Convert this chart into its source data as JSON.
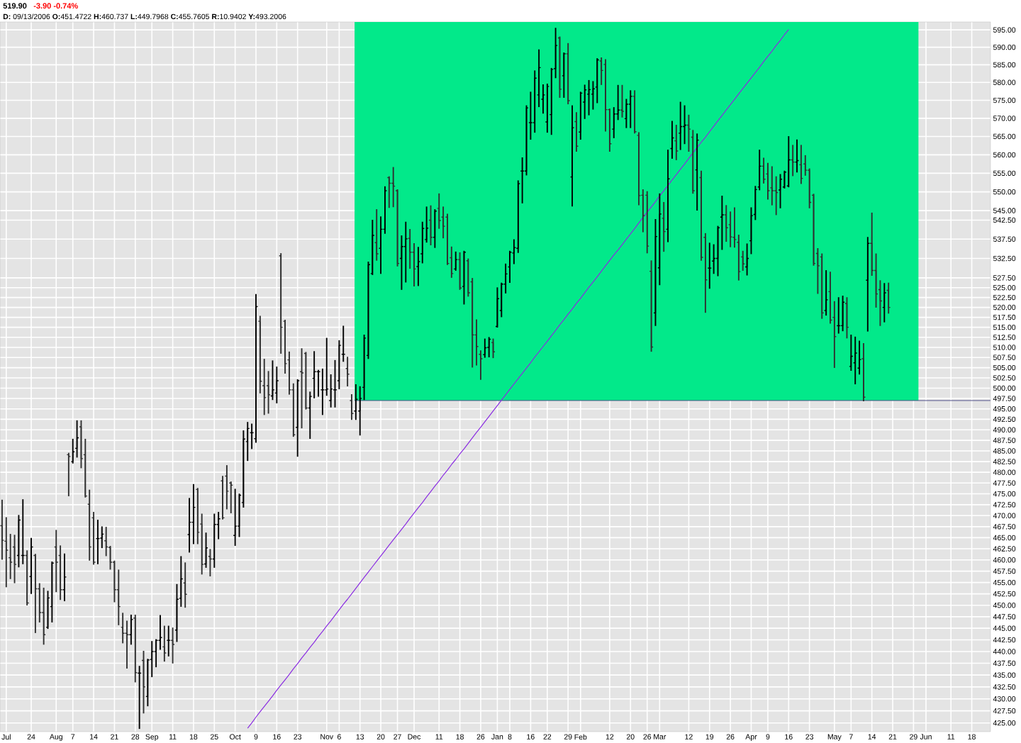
{
  "chart_data": {
    "type": "candlestick",
    "title": "519.90",
    "subtitle": "-3.90 -0.74%",
    "annotations": [
      "**D:** 09/13/2006 **O:**451.4722 **H:**460.737 **L:**449.7968 **C:**455.7605 **R:**10.9402 **Y:**493.2006"
    ],
    "categories": [
      null,
      "Jul",
      null,
      null,
      null,
      null,
      null,
      "24",
      null,
      null,
      null,
      null,
      null,
      "Aug",
      null,
      null,
      null,
      "7",
      null,
      null,
      null,
      null,
      "14",
      null,
      null,
      null,
      null,
      "21",
      null,
      null,
      null,
      null,
      "28",
      null,
      null,
      null,
      "Sep",
      null,
      null,
      null,
      null,
      "11",
      null,
      null,
      null,
      null,
      "18",
      null,
      null,
      null,
      null,
      "25",
      null,
      null,
      null,
      null,
      "Oct",
      null,
      null,
      null,
      null,
      "9",
      null,
      null,
      null,
      null,
      "16",
      null,
      null,
      null,
      null,
      "23",
      null,
      null,
      null,
      null,
      null,
      null,
      "Nov",
      null,
      null,
      "6",
      null,
      null,
      null,
      null,
      "13",
      null,
      null,
      null,
      null,
      "20",
      null,
      null,
      null,
      "27",
      null,
      null,
      null,
      "Dec",
      null,
      null,
      null,
      null,
      null,
      "11",
      null,
      null,
      null,
      null,
      "18",
      null,
      null,
      null,
      null,
      "26",
      null,
      null,
      null,
      "Jan",
      null,
      null,
      "8",
      null,
      null,
      null,
      null,
      "16",
      null,
      null,
      null,
      "22",
      null,
      null,
      null,
      null,
      "29",
      null,
      null,
      "Feb",
      null,
      null,
      null,
      null,
      null,
      null,
      "12",
      null,
      null,
      null,
      null,
      "20",
      null,
      null,
      null,
      "26",
      null,
      null,
      "Mar",
      null,
      null,
      null,
      null,
      null,
      null,
      "12",
      null,
      null,
      null,
      null,
      "19",
      null,
      null,
      null,
      null,
      "26",
      null,
      null,
      null,
      null,
      "Apr",
      null,
      null,
      null,
      "9",
      null,
      null,
      null,
      null,
      "16",
      null,
      null,
      null,
      null,
      "23",
      null,
      null,
      null,
      null,
      null,
      "May",
      null,
      null,
      null,
      "7",
      null,
      null,
      null,
      null,
      "14",
      null,
      null,
      null,
      null,
      "21",
      null,
      null,
      null,
      null,
      "29",
      null,
      null,
      "Jun",
      null,
      null,
      null,
      null,
      null,
      "11",
      null,
      null,
      null,
      null,
      "18",
      null,
      null,
      null,
      null
    ],
    "ohlc": [
      [
        467.7,
        473.5,
        460.2,
        464.4
      ],
      [
        464.2,
        469.5,
        454.1,
        462.2
      ],
      [
        460.5,
        465.7,
        455.9,
        459.5
      ],
      [
        462.9,
        465.5,
        455.0,
        459.0
      ],
      [
        461.0,
        470.0,
        458.5,
        469.0
      ],
      [
        461.0,
        473.6,
        459.2,
        461.0
      ],
      [
        461.0,
        462.0,
        450.1,
        450.5
      ],
      [
        456.3,
        464.8,
        452.6,
        462.9
      ],
      [
        461.0,
        461.2,
        444.1,
        453.6
      ],
      [
        453.6,
        454.7,
        446.4,
        448.4
      ],
      [
        448.4,
        453.7,
        441.6,
        443.6
      ],
      [
        445.2,
        453.0,
        445.0,
        451.6
      ],
      [
        449.7,
        459.5,
        446.4,
        459.3
      ],
      [
        462.9,
        466.6,
        453.0,
        459.5
      ],
      [
        461.0,
        463.1,
        451.3,
        453.4
      ],
      [
        453.4,
        461.3,
        451.0,
        456.2
      ],
      [
        484.1,
        484.4,
        474.6,
        483.7
      ],
      [
        482.5,
        487.7,
        482.2,
        484.8
      ],
      [
        485.6,
        492.1,
        483.6,
        488.1
      ],
      [
        490.7,
        492.1,
        481.1,
        483.2
      ],
      [
        484.1,
        487.7,
        474.3,
        474.5
      ],
      [
        472.6,
        475.8,
        460.0,
        462.9
      ],
      [
        469.5,
        470.7,
        459.1,
        459.5
      ],
      [
        464.8,
        468.9,
        459.2,
        464.8
      ],
      [
        464.9,
        467.4,
        462.8,
        465.8
      ],
      [
        464.3,
        467.3,
        461.0,
        462.9
      ],
      [
        462.8,
        463.0,
        458.0,
        459.5
      ],
      [
        459.5,
        459.7,
        450.8,
        453.4
      ],
      [
        453.4,
        457.7,
        445.8,
        449.7
      ],
      [
        445.2,
        448.2,
        441.9,
        443.9
      ],
      [
        443.9,
        446.5,
        436.5,
        443.6
      ],
      [
        443.6,
        447.8,
        441.6,
        446.9
      ],
      [
        447.2,
        447.8,
        433.6,
        435.5
      ],
      [
        435.4,
        436.8,
        423.9,
        435.4
      ],
      [
        438.1,
        440.0,
        427.1,
        432.5
      ],
      [
        430.5,
        438.3,
        428.6,
        438.2
      ],
      [
        438.3,
        442.1,
        434.7,
        440.0
      ],
      [
        440.0,
        442.5,
        436.8,
        442.4
      ],
      [
        442.4,
        447.7,
        440.5,
        443.0
      ],
      [
        441.0,
        445.4,
        438.0,
        439.7
      ],
      [
        442.4,
        445.4,
        439.1,
        442.4
      ],
      [
        442.4,
        445.0,
        437.6,
        441.5
      ],
      [
        444.6,
        454.5,
        442.2,
        451.3
      ],
      [
        451.5,
        460.7,
        449.8,
        455.8
      ],
      [
        454.9,
        459.3,
        449.6,
        452.4
      ],
      [
        465.7,
        473.9,
        461.8,
        468.5
      ],
      [
        468.5,
        477.1,
        463.7,
        471.9
      ],
      [
        476.0,
        476.2,
        463.7,
        466.2
      ],
      [
        468.1,
        470.3,
        456.9,
        459.0
      ],
      [
        459.1,
        466.0,
        458.4,
        462.7
      ],
      [
        460.8,
        462.3,
        456.5,
        460.2
      ],
      [
        460.2,
        470.3,
        458.4,
        468.0
      ],
      [
        468.0,
        470.7,
        464.8,
        469.3
      ],
      [
        478.0,
        479.0,
        469.3,
        469.5
      ],
      [
        479.1,
        481.5,
        471.6,
        475.6
      ],
      [
        477.5,
        477.7,
        470.7,
        477.0
      ],
      [
        465.5,
        476.0,
        463.3,
        467.6
      ],
      [
        467.6,
        474.9,
        465.3,
        474.7
      ],
      [
        473.0,
        489.7,
        472.0,
        487.8
      ],
      [
        487.2,
        491.7,
        482.8,
        490.3
      ],
      [
        489.3,
        491.3,
        485.6,
        489.3
      ],
      [
        487.9,
        523.2,
        487.1,
        520.2
      ],
      [
        516.5,
        517.7,
        498.9,
        501.7
      ],
      [
        500.6,
        507.0,
        493.7,
        497.7
      ],
      [
        500.6,
        504.0,
        494.0,
        498.4
      ],
      [
        498.1,
        506.6,
        497.3,
        499.6
      ],
      [
        498.8,
        505.1,
        496.5,
        501.8
      ],
      [
        533.2,
        533.7,
        508.6,
        515.0
      ],
      [
        516.5,
        516.7,
        503.7,
        506.0
      ],
      [
        506.9,
        508.8,
        498.6,
        499.6
      ],
      [
        499.6,
        501.0,
        488.5,
        488.8
      ],
      [
        490.6,
        502.0,
        483.8,
        501.8
      ],
      [
        504.0,
        509.6,
        490.5,
        503.7
      ],
      [
        508.5,
        508.7,
        495.0,
        495.2
      ],
      [
        495.2,
        499.0,
        488.0,
        498.0
      ],
      [
        502.4,
        508.9,
        497.7,
        504.0
      ],
      [
        504.0,
        504.3,
        498.1,
        504.0
      ],
      [
        499.6,
        504.6,
        493.7,
        499.6
      ],
      [
        499.6,
        512.2,
        498.3,
        499.8
      ],
      [
        497.0,
        503.2,
        495.5,
        499.8
      ],
      [
        499.6,
        506.7,
        495.5,
        499.6
      ],
      [
        501.8,
        511.6,
        499.9,
        510.5
      ],
      [
        508.3,
        515.2,
        506.6,
        508.3
      ],
      [
        504.8,
        507.5,
        500.6,
        503.4
      ],
      [
        497.0,
        498.4,
        492.5,
        493.9
      ],
      [
        494.5,
        500.8,
        492.5,
        497.3
      ],
      [
        494.5,
        500.3,
        488.8,
        497.5
      ],
      [
        500.2,
        513.0,
        497.3,
        512.3
      ],
      [
        508.0,
        531.5,
        507.3,
        530.9
      ],
      [
        528.6,
        542.4,
        528.4,
        538.5
      ],
      [
        536.6,
        545.2,
        532.1,
        533.7
      ],
      [
        535.1,
        543.3,
        528.7,
        540.1
      ],
      [
        540.1,
        551.3,
        539.1,
        550.3
      ],
      [
        553.8,
        554.0,
        545.9,
        552.3
      ],
      [
        552.3,
        556.5,
        546.1,
        551.5
      ],
      [
        550.3,
        550.5,
        530.6,
        531.2
      ],
      [
        532.5,
        538.3,
        524.6,
        535.6
      ],
      [
        535.6,
        541.9,
        526.5,
        537.6
      ],
      [
        537.7,
        540.0,
        530.0,
        534.1
      ],
      [
        534.1,
        536.3,
        525.5,
        529.8
      ],
      [
        530.4,
        535.3,
        525.6,
        531.7
      ],
      [
        533.7,
        541.9,
        531.4,
        540.3
      ],
      [
        537.4,
        545.9,
        536.8,
        540.4
      ],
      [
        542.5,
        546.2,
        536.1,
        538.0
      ],
      [
        538.0,
        545.2,
        535.4,
        544.9
      ],
      [
        545.6,
        549.4,
        540.4,
        542.4
      ],
      [
        543.3,
        545.9,
        537.9,
        540.9
      ],
      [
        543.3,
        544.0,
        531.0,
        531.2
      ],
      [
        532.7,
        535.4,
        527.7,
        528.6
      ],
      [
        529.8,
        534.1,
        529.5,
        532.2
      ],
      [
        532.2,
        533.9,
        524.6,
        524.9
      ],
      [
        525.3,
        534.3,
        520.9,
        534.1
      ],
      [
        531.9,
        532.3,
        522.9,
        523.7
      ],
      [
        526.5,
        527.3,
        505.2,
        513.1
      ],
      [
        513.1,
        516.8,
        505.7,
        510.2
      ],
      [
        508.3,
        509.1,
        502.2,
        507.2
      ],
      [
        508.2,
        512.0,
        507.6,
        509.9
      ],
      [
        510.0,
        512.4,
        507.7,
        512.0
      ],
      [
        511.2,
        512.0,
        507.5,
        508.9
      ],
      [
        515.2,
        524.9,
        515.1,
        522.2
      ],
      [
        519.2,
        526.1,
        517.7,
        525.9
      ],
      [
        525.9,
        531.0,
        523.7,
        528.5
      ],
      [
        530.3,
        534.3,
        526.4,
        534.1
      ],
      [
        533.9,
        537.3,
        531.2,
        535.3
      ],
      [
        535.1,
        552.9,
        534.1,
        552.2
      ],
      [
        555.6,
        559.1,
        547.1,
        555.6
      ],
      [
        555.6,
        573.4,
        554.6,
        572.9
      ],
      [
        568.8,
        577.2,
        564.3,
        568.8
      ],
      [
        568.8,
        583.2,
        566.2,
        581.2
      ],
      [
        576.5,
        589.2,
        573.3,
        584.2
      ],
      [
        575.3,
        579.3,
        571.5,
        576.5
      ],
      [
        569.0,
        579.5,
        566.2,
        578.9
      ],
      [
        571.0,
        583.9,
        565.6,
        583.7
      ],
      [
        583.9,
        595.4,
        581.4,
        590.5
      ],
      [
        592.7,
        592.9,
        575.9,
        578.1
      ],
      [
        581.9,
        588.3,
        575.9,
        588.1
      ],
      [
        588.1,
        591.0,
        574.1,
        574.9
      ],
      [
        554.0,
        573.4,
        546.3,
        567.4
      ],
      [
        569.1,
        571.5,
        561.0,
        562.3
      ],
      [
        566.2,
        577.2,
        564.3,
        577.0
      ],
      [
        574.5,
        579.2,
        570.0,
        577.9
      ],
      [
        576.7,
        580.5,
        571.0,
        578.0
      ],
      [
        576.7,
        580.2,
        572.6,
        578.2
      ],
      [
        578.7,
        586.7,
        574.4,
        586.4
      ],
      [
        586.1,
        586.9,
        579.5,
        583.4
      ],
      [
        585.1,
        586.4,
        566.5,
        572.4
      ],
      [
        572.4,
        572.5,
        561.0,
        563.0
      ],
      [
        567.0,
        572.9,
        564.7,
        571.2
      ],
      [
        571.2,
        579.1,
        569.7,
        572.3
      ],
      [
        572.3,
        579.1,
        570.4,
        571.9
      ],
      [
        569.9,
        575.2,
        567.5,
        573.9
      ],
      [
        573.9,
        577.6,
        567.5,
        576.1
      ],
      [
        576.1,
        577.6,
        566.0,
        566.3
      ],
      [
        565.3,
        566.0,
        546.6,
        549.0
      ],
      [
        549.1,
        550.5,
        539.5,
        543.7
      ],
      [
        549.1,
        550.0,
        534.0,
        535.7
      ],
      [
        529.2,
        531.8,
        509.1,
        510.1
      ],
      [
        518.6,
        542.6,
        515.5,
        538.2
      ],
      [
        530.1,
        549.4,
        525.8,
        544.1
      ],
      [
        543.0,
        547.1,
        534.4,
        539.5
      ],
      [
        540.1,
        561.2,
        536.9,
        553.5
      ],
      [
        561.7,
        569.1,
        559.1,
        564.6
      ],
      [
        563.8,
        568.0,
        558.7,
        561.0
      ],
      [
        565.9,
        574.4,
        561.5,
        567.7
      ],
      [
        567.7,
        573.4,
        563.1,
        568.1
      ],
      [
        568.1,
        570.8,
        561.0,
        567.0
      ],
      [
        564.8,
        566.6,
        549.7,
        550.3
      ],
      [
        555.9,
        565.6,
        545.2,
        564.0
      ],
      [
        553.8,
        555.5,
        532.1,
        532.8
      ],
      [
        538.0,
        538.9,
        518.8,
        527.0
      ],
      [
        530.0,
        536.4,
        524.9,
        530.0
      ],
      [
        531.8,
        536.0,
        528.7,
        532.5
      ],
      [
        532.5,
        540.8,
        528.1,
        540.5
      ],
      [
        543.3,
        548.8,
        534.9,
        543.9
      ],
      [
        543.9,
        546.3,
        537.0,
        540.5
      ],
      [
        541.3,
        544.6,
        535.6,
        538.1
      ],
      [
        538.0,
        545.7,
        535.5,
        537.4
      ],
      [
        536.7,
        538.5,
        527.0,
        529.1
      ],
      [
        532.9,
        534.3,
        529.5,
        531.1
      ],
      [
        530.3,
        536.2,
        528.3,
        532.5
      ],
      [
        537.1,
        545.7,
        533.8,
        543.7
      ],
      [
        544.0,
        551.4,
        542.7,
        550.6
      ],
      [
        551.3,
        561.2,
        550.6,
        556.9
      ],
      [
        556.9,
        559.0,
        552.4,
        553.4
      ],
      [
        554.8,
        557.6,
        548.1,
        550.3
      ],
      [
        551.1,
        556.7,
        546.6,
        550.3
      ],
      [
        550.3,
        554.0,
        544.0,
        549.8
      ],
      [
        550.5,
        554.6,
        545.8,
        553.4
      ],
      [
        551.3,
        555.5,
        551.1,
        555.3
      ],
      [
        551.6,
        564.9,
        551.4,
        558.6
      ],
      [
        558.6,
        562.5,
        554.4,
        558.0
      ],
      [
        558.0,
        564.0,
        555.4,
        558.4
      ],
      [
        557.3,
        562.5,
        552.3,
        553.6
      ],
      [
        557.5,
        559.7,
        554.5,
        555.8
      ],
      [
        555.8,
        556.1,
        545.8,
        547.2
      ],
      [
        549.1,
        549.3,
        530.8,
        531.2
      ],
      [
        533.8,
        535.0,
        523.6,
        530.6
      ],
      [
        532.9,
        533.6,
        517.3,
        518.6
      ],
      [
        519.2,
        529.3,
        518.1,
        521.9
      ],
      [
        524.0,
        528.9,
        516.1,
        516.8
      ],
      [
        517.5,
        521.4,
        505.1,
        512.7
      ],
      [
        515.4,
        522.4,
        513.6,
        515.4
      ],
      [
        515.4,
        522.8,
        514.2,
        521.3
      ],
      [
        521.0,
        522.4,
        512.4,
        515.0
      ],
      [
        505.3,
        513.0,
        504.4,
        507.8
      ],
      [
        506.2,
        512.5,
        501.1,
        508.6
      ],
      [
        504.9,
        511.5,
        503.5,
        507.0
      ],
      [
        507.2,
        510.9,
        497.0,
        497.8
      ],
      [
        526.9,
        537.9,
        514.1,
        536.4
      ],
      [
        536.4,
        544.3,
        528.2,
        529.4
      ],
      [
        529.4,
        533.6,
        520.1,
        523.4
      ],
      [
        524.5,
        526.7,
        515.5,
        521.6
      ],
      [
        520.0,
        526.0,
        516.4,
        523.7
      ],
      [
        524.3,
        526.1,
        518.6,
        520.0
      ],
      null,
      null,
      null,
      null,
      null,
      null,
      null,
      null,
      null,
      null,
      null,
      null,
      null,
      null,
      null,
      null,
      null,
      null,
      null,
      null,
      null,
      null,
      null,
      null
    ],
    "colors": [
      "#303030",
      "#303030",
      "#303030",
      "#303030",
      "#000000",
      "#000000",
      "#303030",
      "#000000",
      "#303030",
      "#303030",
      "#303030",
      "#000000",
      "#000000",
      "#303030",
      "#303030",
      "#000000",
      "#303030",
      "#000000",
      "#000000",
      "#303030",
      "#303030",
      "#303030",
      "#303030",
      "#000000",
      "#000000",
      "#303030",
      "#303030",
      "#303030",
      "#303030",
      "#303030",
      "#303030",
      "#000000",
      "#303030",
      "#000000",
      "#303030",
      "#000000",
      "#000000",
      "#000000",
      "#000000",
      "#303030",
      "#000000",
      "#303030",
      "#000000",
      "#000000",
      "#303030",
      "#000000",
      "#000000",
      "#303030",
      "#303030",
      "#000000",
      "#303030",
      "#000000",
      "#000000",
      "#303030",
      "#303030",
      "#303030",
      "#000000",
      "#000000",
      "#000000",
      "#000000",
      "#000000",
      "#000000",
      "#303030",
      "#303030",
      "#303030",
      "#000000",
      "#000000",
      "#303030",
      "#303030",
      "#303030",
      "#303030",
      "#000000",
      "#303030",
      "#303030",
      "#000000",
      "#000000",
      "#000000",
      "#000000",
      "#000000",
      "#000000",
      "#000000",
      "#000000",
      "#000000",
      "#303030",
      "#303030",
      "#000000",
      "#000000",
      "#000000",
      "#000000",
      "#000000",
      "#303030",
      "#000000",
      "#000000",
      "#303030",
      "#303030",
      "#303030",
      "#000000",
      "#000000",
      "#303030",
      "#303030",
      "#000000",
      "#000000",
      "#000000",
      "#303030",
      "#000000",
      "#303030",
      "#303030",
      "#303030",
      "#303030",
      "#000000",
      "#303030",
      "#000000",
      "#303030",
      "#303030",
      "#303030",
      "#303030",
      "#000000",
      "#000000",
      "#303030",
      "#000000",
      "#000000",
      "#000000",
      "#000000",
      "#000000",
      "#000000",
      "#000000",
      "#000000",
      "#000000",
      "#000000",
      "#000000",
      "#000000",
      "#000000",
      "#000000",
      "#000000",
      "#303030",
      "#000000",
      "#303030",
      "#000000",
      "#303030",
      "#000000",
      "#000000",
      "#000000",
      "#000000",
      "#000000",
      "#303030",
      "#303030",
      "#303030",
      "#000000",
      "#000000",
      "#303030",
      "#000000",
      "#000000",
      "#303030",
      "#303030",
      "#303030",
      "#303030",
      "#303030",
      "#000000",
      "#000000",
      "#303030",
      "#000000",
      "#000000",
      "#303030",
      "#000000",
      "#000000",
      "#303030",
      "#303030",
      "#000000",
      "#303030",
      "#303030",
      "#000000",
      "#000000",
      "#000000",
      "#000000",
      "#303030",
      "#303030",
      "#303030",
      "#303030",
      "#303030",
      "#000000",
      "#000000",
      "#000000",
      "#000000",
      "#303030",
      "#303030",
      "#303030",
      "#303030",
      "#000000",
      "#000000",
      "#000000",
      "#303030",
      "#000000",
      "#303030",
      "#303030",
      "#303030",
      "#303030",
      "#303030",
      "#303030",
      "#000000",
      "#303030",
      "#303030",
      "#000000",
      "#000000",
      "#303030",
      "#000000",
      "#000000",
      "#000000",
      "#303030",
      "#000000",
      "#303030",
      "#303030",
      "#303030",
      "#000000",
      "#303030",
      null,
      null,
      null,
      null,
      null,
      null,
      null,
      null,
      null,
      null,
      null,
      null,
      null,
      null,
      null,
      null,
      null,
      null,
      null,
      null,
      null,
      null,
      null,
      null
    ],
    "series": [
      {
        "type": "line",
        "color": "#8a2be2",
        "values": [
          null,
          null,
          null,
          null,
          null,
          null,
          null,
          null,
          null,
          null,
          null,
          null,
          null,
          null,
          null,
          null,
          null,
          null,
          null,
          null,
          null,
          null,
          null,
          null,
          null,
          null,
          null,
          null,
          null,
          null,
          null,
          null,
          null,
          null,
          null,
          null,
          null,
          null,
          null,
          null,
          null,
          null,
          null,
          null,
          null,
          null,
          null,
          null,
          null,
          null,
          null,
          null,
          null,
          null,
          null,
          null,
          null,
          null,
          null,
          423.9,
          425.0,
          426.2,
          427.3,
          428.4,
          429.5,
          430.6,
          431.8,
          432.9,
          434.0,
          435.1,
          436.3,
          437.4,
          438.6,
          439.7,
          440.9,
          442.0,
          443.2,
          444.3,
          445.5,
          446.6,
          447.8,
          449.0,
          450.2,
          451.3,
          452.5,
          453.7,
          454.9,
          456.1,
          457.3,
          458.5,
          459.7,
          460.9,
          462.1,
          463.3,
          464.5,
          465.7,
          466.9,
          468.1,
          469.4,
          470.6,
          471.8,
          473.0,
          474.3,
          475.5,
          476.8,
          478.0,
          479.3,
          480.5,
          481.8,
          483.0,
          484.3,
          485.5,
          486.8,
          488.1,
          489.4,
          490.6,
          491.9,
          493.2,
          494.5,
          495.8,
          497.1,
          498.4,
          499.7,
          501.0,
          502.3,
          503.6,
          504.9,
          506.2,
          507.6,
          508.9,
          510.2,
          511.5,
          512.9,
          514.2,
          515.6,
          516.9,
          518.3,
          519.6,
          521.0,
          522.3,
          523.7,
          525.1,
          526.4,
          527.8,
          529.2,
          530.6,
          532.0,
          533.4,
          534.7,
          536.1,
          537.5,
          538.9,
          540.3,
          541.8,
          543.2,
          544.6,
          546.0,
          547.4,
          548.9,
          550.3,
          551.7,
          553.2,
          554.6,
          556.1,
          557.5,
          559.0,
          560.5,
          561.9,
          563.4,
          564.8,
          566.3,
          567.8,
          569.3,
          570.8,
          572.3,
          573.8,
          575.3,
          576.8,
          578.3,
          579.8,
          581.3,
          582.8,
          584.3,
          585.9,
          587.4,
          588.9,
          590.5,
          592.0,
          593.6,
          595.1,
          null,
          null,
          null,
          null,
          null,
          null,
          null,
          null,
          null,
          null,
          null,
          null,
          null,
          null,
          null,
          null,
          null,
          null,
          null,
          null,
          null,
          null,
          null,
          null,
          null,
          null,
          null,
          null,
          null,
          null,
          null,
          null,
          null,
          null,
          null,
          null,
          null,
          null,
          null,
          null,
          null,
          null,
          null,
          null,
          null,
          null,
          null,
          null
        ]
      }
    ],
    "ylim": [
      423.2,
      597.3
    ],
    "yticks": [
      {
        "value": 425,
        "label": "425.00"
      },
      {
        "value": 427.5,
        "label": "427.50"
      },
      {
        "value": 430,
        "label": "430.00"
      },
      {
        "value": 432.5,
        "label": "432.50"
      },
      {
        "value": 435,
        "label": "435.00"
      },
      {
        "value": 437.5,
        "label": "437.50"
      },
      {
        "value": 440,
        "label": "440.00"
      },
      {
        "value": 442.5,
        "label": "442.50"
      },
      {
        "value": 445,
        "label": "445.00"
      },
      {
        "value": 447.5,
        "label": "447.50"
      },
      {
        "value": 450,
        "label": "450.00"
      },
      {
        "value": 452.5,
        "label": "452.50"
      },
      {
        "value": 455,
        "label": "455.00"
      },
      {
        "value": 457.5,
        "label": "457.50"
      },
      {
        "value": 460,
        "label": "460.00"
      },
      {
        "value": 462.5,
        "label": "462.50"
      },
      {
        "value": 465,
        "label": "465.00"
      },
      {
        "value": 467.5,
        "label": "467.50"
      },
      {
        "value": 470,
        "label": "470.00"
      },
      {
        "value": 472.5,
        "label": "472.50"
      },
      {
        "value": 475,
        "label": "475.00"
      },
      {
        "value": 477.5,
        "label": "477.50"
      },
      {
        "value": 480,
        "label": "480.00"
      },
      {
        "value": 482.5,
        "label": "482.50"
      },
      {
        "value": 485,
        "label": "485.00"
      },
      {
        "value": 487.5,
        "label": "487.50"
      },
      {
        "value": 490,
        "label": "490.00"
      },
      {
        "value": 492.5,
        "label": "492.50"
      },
      {
        "value": 495,
        "label": "495.00"
      },
      {
        "value": 497.5,
        "label": "497.50"
      },
      {
        "value": 500,
        "label": "500.00"
      },
      {
        "value": 502.5,
        "label": "502.50"
      },
      {
        "value": 505,
        "label": "505.00"
      },
      {
        "value": 507.5,
        "label": "507.50"
      },
      {
        "value": 510,
        "label": "510.00"
      },
      {
        "value": 512.5,
        "label": "512.50"
      },
      {
        "value": 515,
        "label": "515.00"
      },
      {
        "value": 517.5,
        "label": "517.50"
      },
      {
        "value": 520,
        "label": "520.00"
      },
      {
        "value": 522.5,
        "label": "522.50"
      },
      {
        "value": 525,
        "label": "525.00"
      },
      {
        "value": 527.5,
        "label": "527.50"
      },
      {
        "value": 532.5,
        "label": "532.50"
      },
      {
        "value": 537.5,
        "label": "537.50"
      },
      {
        "value": 542.5,
        "label": "542.50"
      },
      {
        "value": 545,
        "label": "545.00"
      },
      {
        "value": 550,
        "label": "550.00"
      },
      {
        "value": 555,
        "label": "555.00"
      },
      {
        "value": 560,
        "label": "560.00"
      },
      {
        "value": 565,
        "label": "565.00"
      },
      {
        "value": 570,
        "label": "570.00"
      },
      {
        "value": 575,
        "label": "575.00"
      },
      {
        "value": 580,
        "label": "580.00"
      },
      {
        "value": 585,
        "label": "585.00"
      },
      {
        "value": 590,
        "label": "590.00"
      },
      {
        "value": 595,
        "label": "595.00"
      }
    ],
    "log": "y",
    "grid": true,
    "ref_lines": [
      {
        "axis": "y",
        "value": 497.0,
        "color": "#404080"
      }
    ]
  }
}
